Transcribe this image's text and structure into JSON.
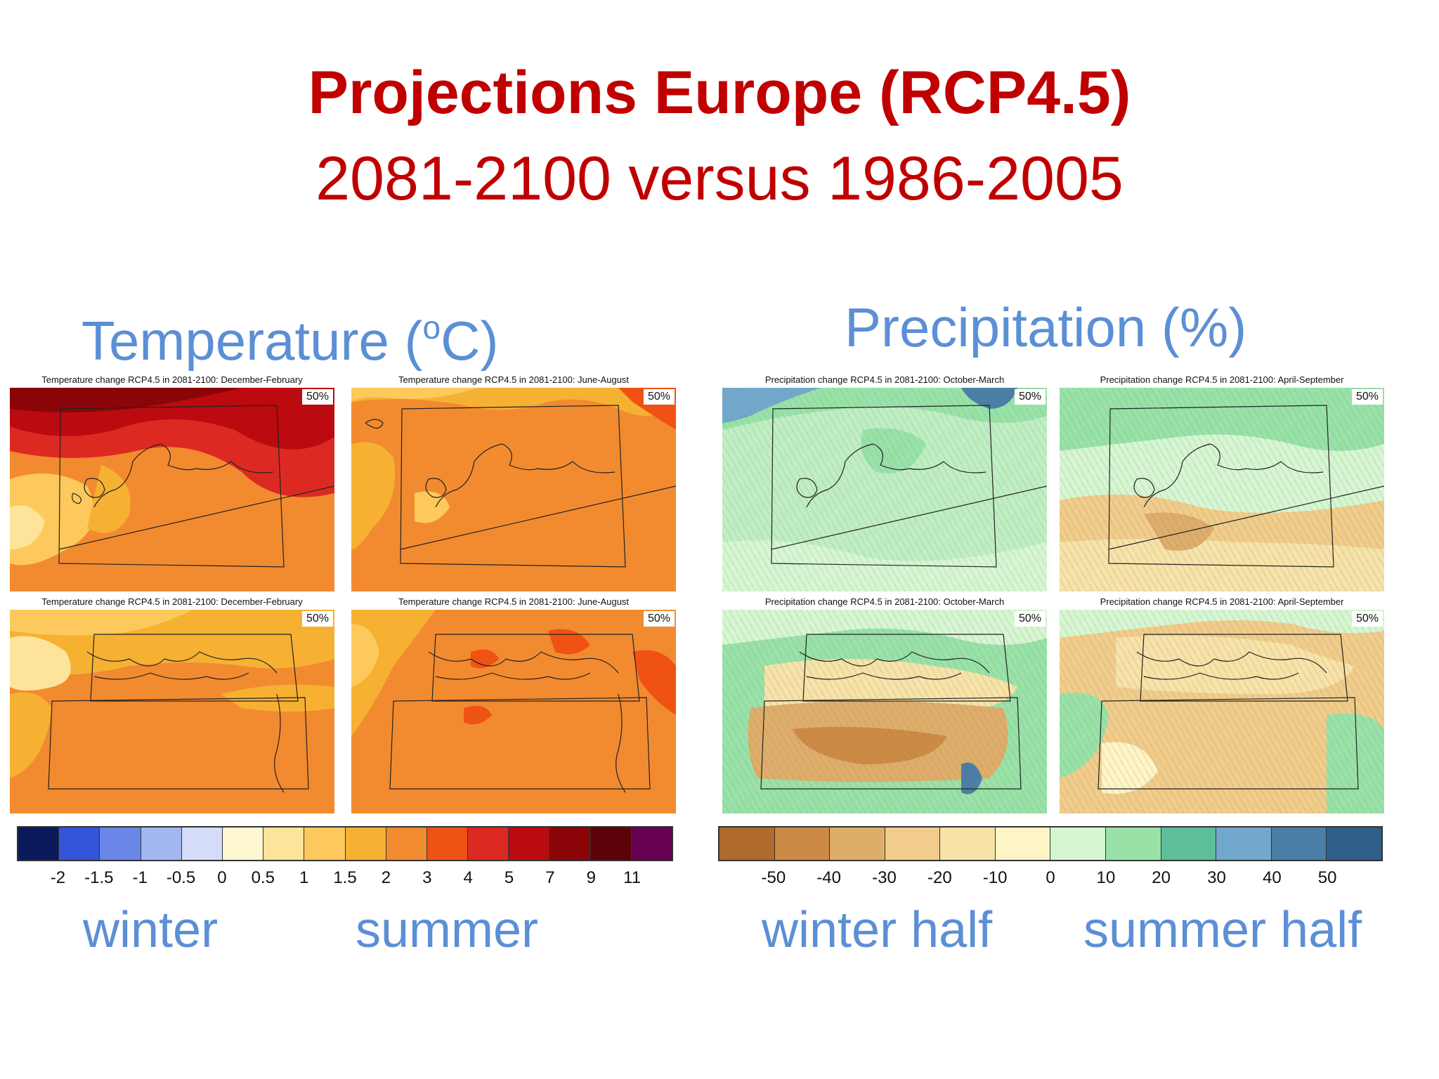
{
  "title": {
    "main": "Projections Europe (RCP4.5)",
    "sub": "2081-2100 versus 1986-2005"
  },
  "temperature": {
    "heading_pre": "Temperature (",
    "heading_sup": "o",
    "heading_post": "C)",
    "panels": [
      {
        "caption": "Temperature change RCP4.5 in 2081-2100: December-February",
        "badge": "50%"
      },
      {
        "caption": "Temperature change RCP4.5 in 2081-2100: June-August",
        "badge": "50%"
      },
      {
        "caption": "Temperature change RCP4.5 in 2081-2100: December-February",
        "badge": "50%"
      },
      {
        "caption": "Temperature change RCP4.5 in 2081-2100: June-August",
        "badge": "50%"
      }
    ],
    "legend": {
      "colors": [
        "#0b1a5a",
        "#3355d9",
        "#6a86e6",
        "#a3b7f0",
        "#d4dcfa",
        "#fff6d2",
        "#fee49a",
        "#fdc95c",
        "#f6b133",
        "#f28b30",
        "#f05214",
        "#dc2a22",
        "#bb0b10",
        "#8b0508",
        "#5c0209",
        "#660050"
      ],
      "ticks": [
        "-2",
        "-1.5",
        "-1",
        "-0.5",
        "0",
        "0.5",
        "1",
        "1.5",
        "2",
        "3",
        "4",
        "5",
        "7",
        "9",
        "11"
      ]
    },
    "labels": {
      "winter": "winter",
      "summer": "summer"
    }
  },
  "precipitation": {
    "heading": "Precipitation (%)",
    "panels": [
      {
        "caption": "Precipitation change RCP4.5 in 2081-2100: October-March",
        "badge": "50%"
      },
      {
        "caption": "Precipitation change RCP4.5 in 2081-2100: April-September",
        "badge": "50%"
      },
      {
        "caption": "Precipitation change RCP4.5 in 2081-2100: October-March",
        "badge": "50%"
      },
      {
        "caption": "Precipitation change RCP4.5 in 2081-2100: April-September",
        "badge": "50%"
      }
    ],
    "legend": {
      "colors": [
        "#b06a2c",
        "#cd8a44",
        "#dfad6a",
        "#f1cc8a",
        "#f7e2a8",
        "#fff4c6",
        "#d6f6d2",
        "#98e2a8",
        "#5cbf9a",
        "#72a8cc",
        "#4a7ea6",
        "#2e5f88"
      ],
      "ticks": [
        "-50",
        "-40",
        "-30",
        "-20",
        "-10",
        "0",
        "10",
        "20",
        "30",
        "40",
        "50"
      ]
    },
    "labels": {
      "winter": "winter half",
      "summer": "summer half"
    }
  }
}
